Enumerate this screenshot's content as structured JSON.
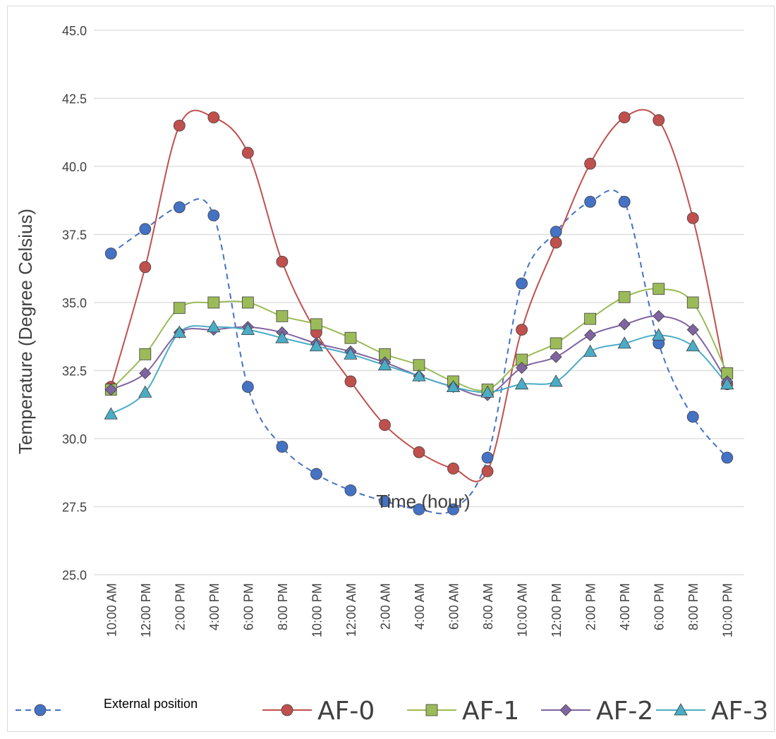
{
  "chart_data": {
    "type": "line",
    "xlabel": "Time (hour)",
    "ylabel": "Temperature (Degree Celsius)",
    "ylim": [
      25.0,
      45.0
    ],
    "yticks": [
      "25.0",
      "27.5",
      "30.0",
      "32.5",
      "35.0",
      "37.5",
      "40.0",
      "42.5",
      "45.0"
    ],
    "grid": true,
    "legend_position": "bottom",
    "categories": [
      "10:00 AM",
      "12:00 PM",
      "2:00 PM",
      "4:00 PM",
      "6:00 PM",
      "8:00 PM",
      "10:00 PM",
      "12:00 AM",
      "2:00 AM",
      "4:00 AM",
      "6:00 AM",
      "8:00 AM",
      "10:00 AM",
      "12:00 PM",
      "2:00 PM",
      "4:00 PM",
      "6:00 PM",
      "8:00 PM",
      "10:00 PM"
    ],
    "series": [
      {
        "name": "External position",
        "color": "#4472c4",
        "marker": "circle",
        "dashed": true,
        "values": [
          36.8,
          37.7,
          38.5,
          38.2,
          31.9,
          29.7,
          28.7,
          28.1,
          27.7,
          27.4,
          27.4,
          29.3,
          35.7,
          37.6,
          38.7,
          38.7,
          33.5,
          30.8,
          29.3
        ]
      },
      {
        "name": "AF-0",
        "color": "#c0504d",
        "marker": "circle",
        "dashed": false,
        "values": [
          31.9,
          36.3,
          41.5,
          41.8,
          40.5,
          36.5,
          33.9,
          32.1,
          30.5,
          29.5,
          28.9,
          28.8,
          34.0,
          37.2,
          40.1,
          41.8,
          41.7,
          38.1,
          32.0
        ]
      },
      {
        "name": "AF-1",
        "color": "#9bbb59",
        "marker": "square",
        "dashed": false,
        "values": [
          31.8,
          33.1,
          34.8,
          35.0,
          35.0,
          34.5,
          34.2,
          33.7,
          33.1,
          32.7,
          32.1,
          31.8,
          32.9,
          33.5,
          34.4,
          35.2,
          35.5,
          35.0,
          32.4
        ]
      },
      {
        "name": "AF-2",
        "color": "#8064a2",
        "marker": "diamond",
        "dashed": false,
        "values": [
          31.8,
          32.4,
          33.9,
          34.0,
          34.1,
          33.9,
          33.5,
          33.2,
          32.8,
          32.3,
          31.9,
          31.6,
          32.6,
          33.0,
          33.8,
          34.2,
          34.5,
          34.0,
          32.1
        ]
      },
      {
        "name": "AF-3",
        "color": "#4bacc6",
        "marker": "triangle",
        "dashed": false,
        "values": [
          30.9,
          31.7,
          33.9,
          34.1,
          34.0,
          33.7,
          33.4,
          33.1,
          32.7,
          32.3,
          31.9,
          31.7,
          32.0,
          32.1,
          33.2,
          33.5,
          33.8,
          33.4,
          32.0
        ]
      }
    ]
  }
}
